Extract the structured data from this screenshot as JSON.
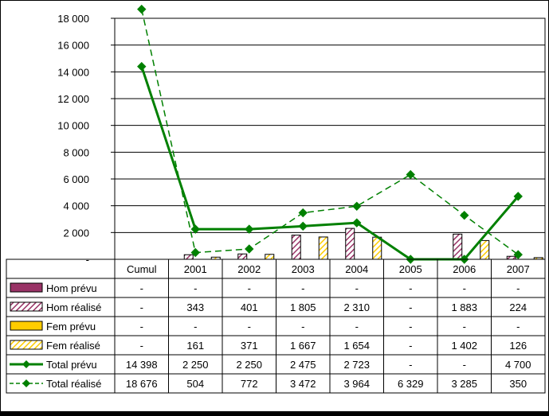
{
  "chart_data": {
    "type": "bar",
    "categories": [
      "Cumul",
      "2001",
      "2002",
      "2003",
      "2004",
      "2005",
      "2006",
      "2007"
    ],
    "ylim": [
      0,
      18000
    ],
    "yticks": [
      {
        "value": 0,
        "label": "-"
      },
      {
        "value": 2000,
        "label": "2 000"
      },
      {
        "value": 4000,
        "label": "4 000"
      },
      {
        "value": 6000,
        "label": "6 000"
      },
      {
        "value": 8000,
        "label": "8 000"
      },
      {
        "value": 10000,
        "label": "10 000"
      },
      {
        "value": 12000,
        "label": "12 000"
      },
      {
        "value": 14000,
        "label": "14 000"
      },
      {
        "value": 16000,
        "label": "16 000"
      },
      {
        "value": 18000,
        "label": "18 000"
      }
    ],
    "grid": true,
    "legend": "data-table-below",
    "series": [
      {
        "name": "Hom prévu",
        "kind": "bar",
        "style": "solid",
        "color": "#993366",
        "values": [
          null,
          null,
          null,
          null,
          null,
          null,
          null,
          null
        ],
        "labels": [
          "-",
          "-",
          "-",
          "-",
          "-",
          "-",
          "-",
          "-"
        ]
      },
      {
        "name": "Hom réalisé",
        "kind": "bar",
        "style": "hatched",
        "color": "#993366",
        "values": [
          null,
          343,
          401,
          1805,
          2310,
          null,
          1883,
          224
        ],
        "labels": [
          "-",
          "343",
          "401",
          "1 805",
          "2 310",
          "-",
          "1 883",
          "224"
        ]
      },
      {
        "name": "Fem prévu",
        "kind": "bar",
        "style": "solid",
        "color": "#FFCC00",
        "values": [
          null,
          null,
          null,
          null,
          null,
          null,
          null,
          null
        ],
        "labels": [
          "-",
          "-",
          "-",
          "-",
          "-",
          "-",
          "-",
          "-"
        ]
      },
      {
        "name": "Fem réalisé",
        "kind": "bar",
        "style": "hatched",
        "color": "#FFCC00",
        "values": [
          null,
          161,
          371,
          1667,
          1654,
          null,
          1402,
          126
        ],
        "labels": [
          "-",
          "161",
          "371",
          "1 667",
          "1 654",
          "-",
          "1 402",
          "126"
        ]
      },
      {
        "name": "Total prévu",
        "kind": "line",
        "style": "solid",
        "color": "#008000",
        "values": [
          14398,
          2250,
          2250,
          2475,
          2723,
          0,
          0,
          4700
        ],
        "labels": [
          "14 398",
          "2 250",
          "2 250",
          "2 475",
          "2 723",
          "-",
          "-",
          "4 700"
        ]
      },
      {
        "name": "Total réalisé",
        "kind": "line",
        "style": "dashed",
        "color": "#008000",
        "values": [
          18676,
          504,
          772,
          3472,
          3964,
          6329,
          3285,
          350
        ],
        "labels": [
          "18 676",
          "504",
          "772",
          "3 472",
          "3 964",
          "6 329",
          "3 285",
          "350"
        ]
      }
    ]
  }
}
